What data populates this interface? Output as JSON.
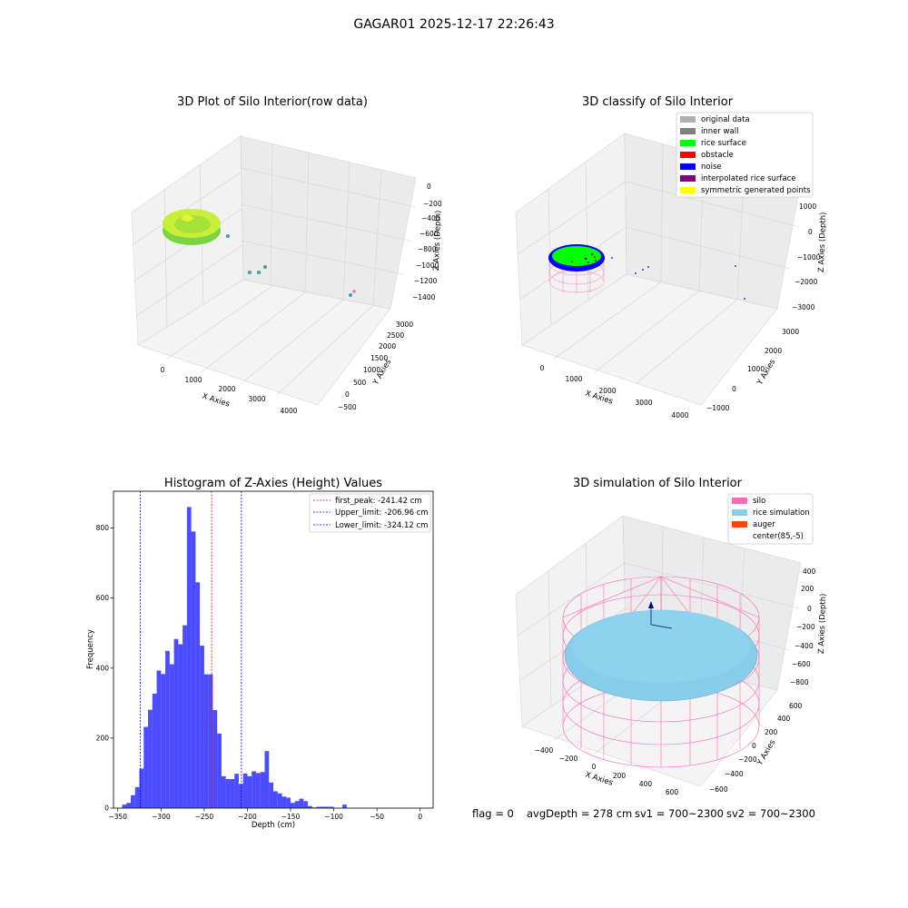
{
  "suptitle": "GAGAR01 2025-12-17 22:26:43",
  "footer": {
    "flag": "flag = 0",
    "avg_depth": "avgDepth = 278 cm",
    "sv1": "sv1 = 700~2300",
    "sv2": "sv2 = 700~2300"
  },
  "plot_raw": {
    "title": "3D Plot of Silo Interior(row data)",
    "xlabel": "X Axies",
    "ylabel": "Y Axies",
    "zlabel": "Z Axies (Depth)",
    "xticks": [
      "0",
      "1000",
      "2000",
      "3000",
      "4000"
    ],
    "yticks": [
      "−500",
      "0",
      "500",
      "1000",
      "1500",
      "2000",
      "2500",
      "3000"
    ],
    "zticks": [
      "0",
      "−200",
      "−400",
      "−600",
      "−800",
      "−1000",
      "−1200",
      "−1400"
    ],
    "colors": {
      "surface_light": "#d8f03a",
      "surface_dark": "#7ad640",
      "points": "#3aa3a0"
    }
  },
  "plot_classify": {
    "title": "3D classify of Silo Interior",
    "xlabel": "X Axies",
    "ylabel": "Y Axies",
    "zlabel": "Z Axies (Depth)",
    "xticks": [
      "0",
      "1000",
      "2000",
      "3000",
      "4000"
    ],
    "yticks": [
      "−1000",
      "0",
      "1000",
      "2000",
      "3000"
    ],
    "zticks": [
      "1000",
      "0",
      "−1000",
      "−2000",
      "−3000"
    ],
    "legend": [
      {
        "label": "original data",
        "color": "#b0b0b0"
      },
      {
        "label": "inner wall",
        "color": "#808080"
      },
      {
        "label": "rice surface",
        "color": "#00ff00"
      },
      {
        "label": "obstacle",
        "color": "#ff0000"
      },
      {
        "label": "noise",
        "color": "#0000ff"
      },
      {
        "label": "interpolated rice surface",
        "color": "#800080"
      },
      {
        "label": "symmetric generated points",
        "color": "#ffff00"
      }
    ]
  },
  "plot_sim": {
    "title": "3D simulation of Silo Interior",
    "xlabel": "X Axies",
    "ylabel": "Y Axies",
    "zlabel": "Z Axies (Depth)",
    "xticks": [
      "−400",
      "−200",
      "0",
      "200",
      "400",
      "600"
    ],
    "yticks": [
      "−600",
      "−400",
      "−200",
      "0",
      "200",
      "400",
      "600"
    ],
    "zticks": [
      "400",
      "200",
      "0",
      "−200",
      "−400",
      "−600",
      "−800"
    ],
    "legend": [
      {
        "label": "silo",
        "color": "#ff69b4"
      },
      {
        "label": "rice simulation",
        "color": "#87ceeb"
      },
      {
        "label": "auger",
        "color": "#ff4500"
      },
      {
        "label": "center(85,-5)",
        "color": "#ffffff"
      }
    ]
  },
  "chart_data": {
    "type": "bar",
    "title": "Histogram of Z-Axies (Height) Values",
    "xlabel": "Depth (cm)",
    "ylabel": "Frequency",
    "xlim": [
      -355,
      15
    ],
    "ylim": [
      0,
      905
    ],
    "xticks": [
      -350,
      -300,
      -250,
      -200,
      -150,
      -100,
      -50,
      0
    ],
    "xtick_labels": [
      "−350",
      "−300",
      "−250",
      "−200",
      "−150",
      "−100",
      "−50",
      "0"
    ],
    "yticks": [
      0,
      200,
      400,
      600,
      800
    ],
    "bar_color": "#0000ff",
    "bins": [
      {
        "x0": -345,
        "x1": -340,
        "count": 10
      },
      {
        "x0": -340,
        "x1": -335,
        "count": 15
      },
      {
        "x0": -335,
        "x1": -330,
        "count": 37
      },
      {
        "x0": -330,
        "x1": -325,
        "count": 60
      },
      {
        "x0": -325,
        "x1": -320,
        "count": 113
      },
      {
        "x0": -320,
        "x1": -315,
        "count": 232
      },
      {
        "x0": -315,
        "x1": -310,
        "count": 281
      },
      {
        "x0": -310,
        "x1": -305,
        "count": 327
      },
      {
        "x0": -305,
        "x1": -300,
        "count": 393
      },
      {
        "x0": -300,
        "x1": -295,
        "count": 383
      },
      {
        "x0": -295,
        "x1": -290,
        "count": 449
      },
      {
        "x0": -290,
        "x1": -285,
        "count": 411
      },
      {
        "x0": -285,
        "x1": -280,
        "count": 483
      },
      {
        "x0": -280,
        "x1": -275,
        "count": 468
      },
      {
        "x0": -275,
        "x1": -270,
        "count": 522
      },
      {
        "x0": -270,
        "x1": -265,
        "count": 860
      },
      {
        "x0": -265,
        "x1": -260,
        "count": 790
      },
      {
        "x0": -260,
        "x1": -255,
        "count": 645
      },
      {
        "x0": -255,
        "x1": -250,
        "count": 464
      },
      {
        "x0": -250,
        "x1": -245,
        "count": 382
      },
      {
        "x0": -245,
        "x1": -240,
        "count": 382
      },
      {
        "x0": -240,
        "x1": -235,
        "count": 280
      },
      {
        "x0": -235,
        "x1": -230,
        "count": 213
      },
      {
        "x0": -230,
        "x1": -225,
        "count": 91
      },
      {
        "x0": -225,
        "x1": -220,
        "count": 83
      },
      {
        "x0": -220,
        "x1": -215,
        "count": 83
      },
      {
        "x0": -215,
        "x1": -210,
        "count": 98
      },
      {
        "x0": -210,
        "x1": -205,
        "count": 69
      },
      {
        "x0": -205,
        "x1": -200,
        "count": 99
      },
      {
        "x0": -200,
        "x1": -195,
        "count": 91
      },
      {
        "x0": -195,
        "x1": -190,
        "count": 105
      },
      {
        "x0": -190,
        "x1": -185,
        "count": 100
      },
      {
        "x0": -185,
        "x1": -180,
        "count": 103
      },
      {
        "x0": -180,
        "x1": -175,
        "count": 163
      },
      {
        "x0": -175,
        "x1": -170,
        "count": 73
      },
      {
        "x0": -170,
        "x1": -165,
        "count": 48
      },
      {
        "x0": -165,
        "x1": -160,
        "count": 42
      },
      {
        "x0": -160,
        "x1": -155,
        "count": 33
      },
      {
        "x0": -155,
        "x1": -150,
        "count": 30
      },
      {
        "x0": -150,
        "x1": -145,
        "count": 15
      },
      {
        "x0": -145,
        "x1": -140,
        "count": 20
      },
      {
        "x0": -140,
        "x1": -135,
        "count": 27
      },
      {
        "x0": -135,
        "x1": -130,
        "count": 20
      },
      {
        "x0": -130,
        "x1": -125,
        "count": 6
      },
      {
        "x0": -125,
        "x1": -120,
        "count": 2
      },
      {
        "x0": -120,
        "x1": -115,
        "count": 4
      },
      {
        "x0": -115,
        "x1": -110,
        "count": 4
      },
      {
        "x0": -110,
        "x1": -105,
        "count": 4
      },
      {
        "x0": -105,
        "x1": -100,
        "count": 4
      },
      {
        "x0": -100,
        "x1": -95,
        "count": 0
      },
      {
        "x0": -95,
        "x1": -90,
        "count": 0
      },
      {
        "x0": -90,
        "x1": -85,
        "count": 10
      }
    ],
    "lines": [
      {
        "label": "first_peak: -241.42 cm",
        "x": -241.42,
        "color": "#ff0000"
      },
      {
        "label": "Upper_limit: -206.96 cm",
        "x": -206.96,
        "color": "#0000ff"
      },
      {
        "label": "Lower_limit: -324.12 cm",
        "x": -324.12,
        "color": "#0000ff"
      }
    ],
    "legend_position": "top-right"
  }
}
